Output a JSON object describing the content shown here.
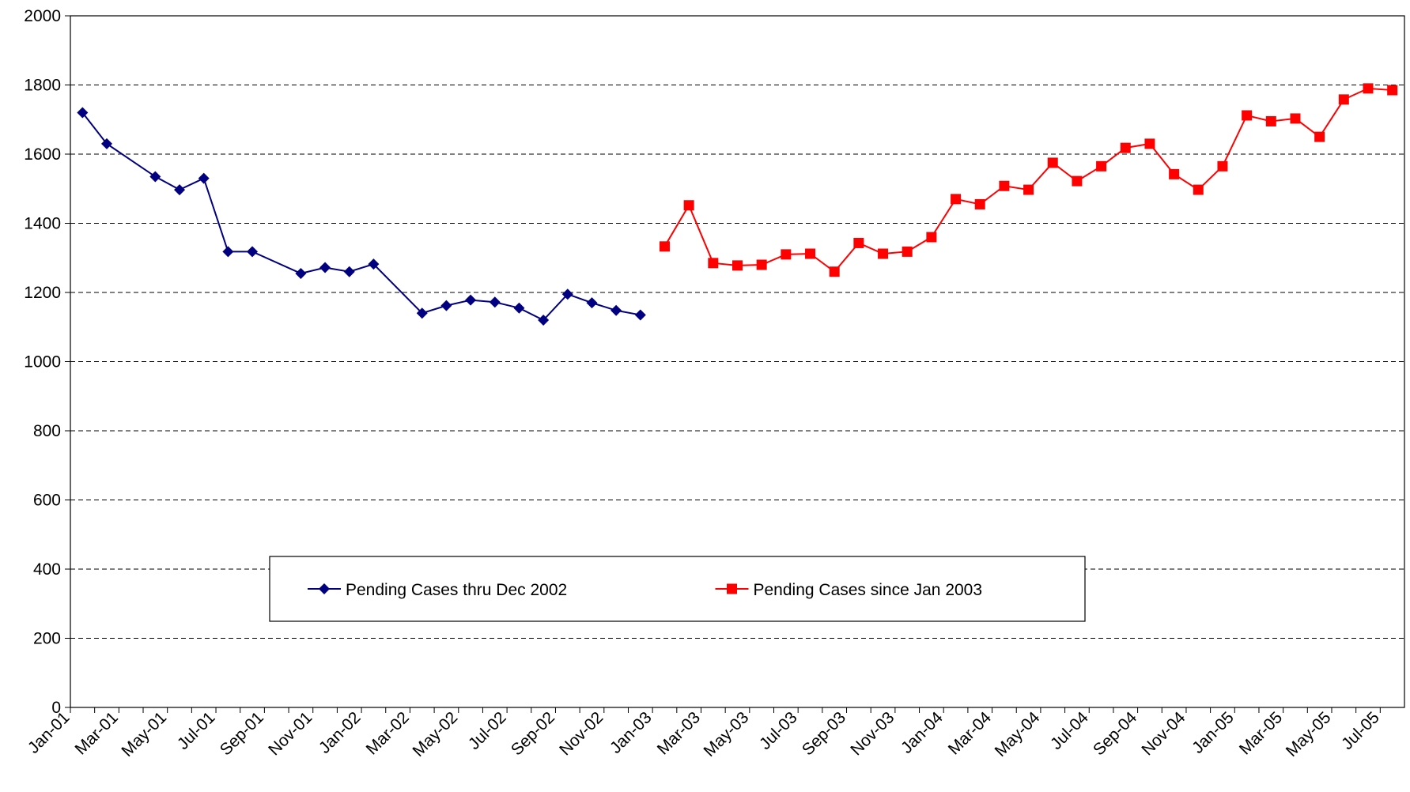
{
  "chart_data": {
    "type": "line",
    "categories": [
      "Jan-01",
      null,
      "Mar-01",
      null,
      "May-01",
      null,
      "Jul-01",
      null,
      "Sep-01",
      null,
      "Nov-01",
      null,
      "Jan-02",
      null,
      "Mar-02",
      null,
      "May-02",
      null,
      "Jul-02",
      null,
      "Sep-02",
      null,
      "Nov-02",
      null,
      "Jan-03",
      null,
      "Mar-03",
      null,
      "May-03",
      null,
      "Jul-03",
      null,
      "Sep-03",
      null,
      "Nov-03",
      null,
      "Jan-04",
      null,
      "Mar-04",
      null,
      "May-04",
      null,
      "Jul-04",
      null,
      "Sep-04",
      null,
      "Nov-04",
      null,
      "Jan-05",
      null,
      "Mar-05",
      null,
      "May-05",
      null,
      "Jul-05"
    ],
    "series": [
      {
        "name": "Pending Cases thru Dec 2002",
        "color": "#000080",
        "marker": "diamond",
        "values": [
          1720,
          1630,
          null,
          1535,
          1497,
          1530,
          1318,
          1318,
          null,
          1255,
          1272,
          1260,
          1282,
          null,
          1140,
          1162,
          1178,
          1172,
          1155,
          1120,
          1195,
          1170,
          1148,
          1135,
          null,
          null,
          null,
          null,
          null,
          null,
          null,
          null,
          null,
          null,
          null,
          null,
          null,
          null,
          null,
          null,
          null,
          null,
          null,
          null,
          null,
          null,
          null,
          null,
          null,
          null,
          null,
          null,
          null,
          null,
          null
        ]
      },
      {
        "name": "Pending Cases since Jan 2003",
        "color": "#ff0000",
        "marker": "square",
        "values": [
          null,
          null,
          null,
          null,
          null,
          null,
          null,
          null,
          null,
          null,
          null,
          null,
          null,
          null,
          null,
          null,
          null,
          null,
          null,
          null,
          null,
          null,
          null,
          null,
          1333,
          1452,
          1285,
          1278,
          1280,
          1310,
          1312,
          1260,
          1343,
          1312,
          1318,
          1360,
          1470,
          1455,
          1508,
          1497,
          1575,
          1522,
          1565,
          1618,
          1630,
          1542,
          1497,
          1565,
          1712,
          1695,
          1703,
          1650,
          1758,
          1790,
          1785
        ]
      }
    ],
    "ylim": [
      0,
      2000
    ],
    "yticks": [
      0,
      200,
      400,
      600,
      800,
      1000,
      1200,
      1400,
      1600,
      1800,
      2000
    ],
    "grid": true,
    "span_gaps": true,
    "legend": "lower center"
  }
}
